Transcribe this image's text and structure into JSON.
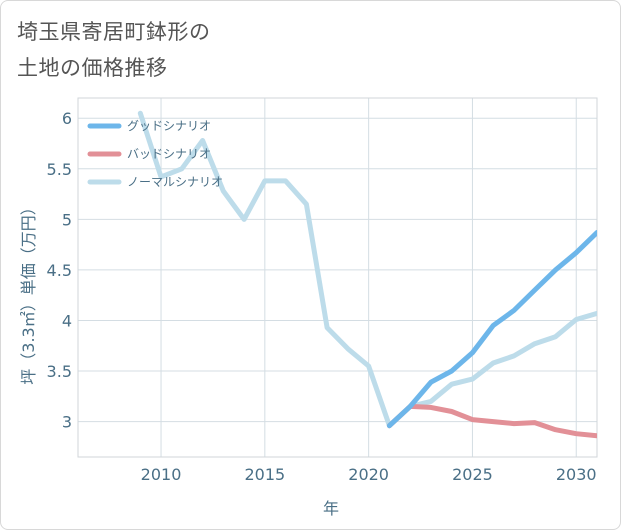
{
  "chart_data": {
    "type": "line",
    "title_line1": "埼玉県寄居町鉢形の",
    "title_line2": "土地の価格推移",
    "xlabel": "年",
    "ylabel": "坪（3.3㎡）単価（万円）",
    "xlim": [
      2006,
      2031
    ],
    "ylim": [
      2.65,
      6.2
    ],
    "xticks": [
      2010,
      2015,
      2020,
      2025,
      2030
    ],
    "xtick_labels": [
      "2010",
      "2015",
      "2020",
      "2025",
      "2030"
    ],
    "yticks": [
      3,
      3.5,
      4,
      4.5,
      5,
      5.5,
      6
    ],
    "ytick_labels": [
      "3",
      "3.5",
      "4",
      "4.5",
      "5",
      "5.5",
      "6"
    ],
    "legend_position": "top-left",
    "series": [
      {
        "name": "グッドシナリオ",
        "color": "#6db6ea",
        "points": [
          [
            2021,
            2.96
          ],
          [
            2022,
            3.15
          ],
          [
            2023,
            3.39
          ],
          [
            2024,
            3.5
          ],
          [
            2025,
            3.68
          ],
          [
            2026,
            3.95
          ],
          [
            2027,
            4.1
          ],
          [
            2028,
            4.3
          ],
          [
            2029,
            4.5
          ],
          [
            2030,
            4.67
          ],
          [
            2031,
            4.87
          ]
        ]
      },
      {
        "name": "バッドシナリオ",
        "color": "#e29097",
        "points": [
          [
            2021,
            2.96
          ],
          [
            2022,
            3.15
          ],
          [
            2023,
            3.14
          ],
          [
            2024,
            3.1
          ],
          [
            2025,
            3.02
          ],
          [
            2026,
            3.0
          ],
          [
            2027,
            2.98
          ],
          [
            2028,
            2.99
          ],
          [
            2029,
            2.92
          ],
          [
            2030,
            2.88
          ],
          [
            2031,
            2.86
          ]
        ]
      },
      {
        "name": "ノーマルシナリオ",
        "color": "#bddcea",
        "points": [
          [
            2009,
            6.05
          ],
          [
            2010,
            5.42
          ],
          [
            2011,
            5.5
          ],
          [
            2012,
            5.78
          ],
          [
            2013,
            5.28
          ],
          [
            2014,
            5.0
          ],
          [
            2015,
            5.38
          ],
          [
            2016,
            5.38
          ],
          [
            2017,
            5.15
          ],
          [
            2018,
            3.93
          ],
          [
            2019,
            3.72
          ],
          [
            2020,
            3.55
          ],
          [
            2021,
            2.96
          ],
          [
            2022,
            3.15
          ],
          [
            2023,
            3.2
          ],
          [
            2024,
            3.37
          ],
          [
            2025,
            3.42
          ],
          [
            2026,
            3.58
          ],
          [
            2027,
            3.65
          ],
          [
            2028,
            3.77
          ],
          [
            2029,
            3.84
          ],
          [
            2030,
            4.01
          ],
          [
            2031,
            4.07
          ]
        ]
      }
    ]
  }
}
